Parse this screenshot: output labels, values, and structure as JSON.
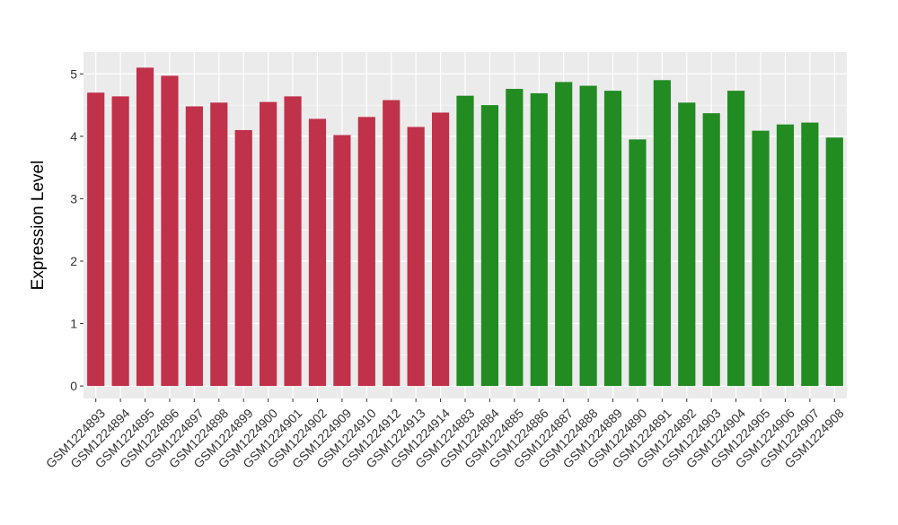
{
  "chart_data": {
    "type": "bar",
    "title": "",
    "xlabel": "",
    "ylabel": "Expression Level",
    "ylim": [
      -0.2,
      5.35
    ],
    "yticks": [
      0,
      1,
      2,
      3,
      4,
      5
    ],
    "grid": true,
    "categories": [
      "GSM1224893",
      "GSM1224894",
      "GSM1224895",
      "GSM1224896",
      "GSM1224897",
      "GSM1224898",
      "GSM1224899",
      "GSM1224900",
      "GSM1224901",
      "GSM1224902",
      "GSM1224909",
      "GSM1224910",
      "GSM1224912",
      "GSM1224913",
      "GSM1224914",
      "GSM1224883",
      "GSM1224884",
      "GSM1224885",
      "GSM1224886",
      "GSM1224887",
      "GSM1224888",
      "GSM1224889",
      "GSM1224890",
      "GSM1224891",
      "GSM1224892",
      "GSM1224903",
      "GSM1224904",
      "GSM1224905",
      "GSM1224906",
      "GSM1224907",
      "GSM1224908"
    ],
    "values": [
      4.7,
      4.64,
      5.1,
      4.97,
      4.48,
      4.54,
      4.1,
      4.55,
      4.64,
      4.28,
      4.02,
      4.31,
      4.58,
      4.15,
      4.38,
      4.65,
      4.5,
      4.76,
      4.69,
      4.87,
      4.81,
      4.73,
      3.95,
      4.9,
      4.54,
      4.37,
      4.73,
      4.09,
      4.19,
      4.22,
      3.98
    ],
    "group_colors": [
      "#c0314a",
      "#c0314a",
      "#c0314a",
      "#c0314a",
      "#c0314a",
      "#c0314a",
      "#c0314a",
      "#c0314a",
      "#c0314a",
      "#c0314a",
      "#c0314a",
      "#c0314a",
      "#c0314a",
      "#c0314a",
      "#c0314a",
      "#228b22",
      "#228b22",
      "#228b22",
      "#228b22",
      "#228b22",
      "#228b22",
      "#228b22",
      "#228b22",
      "#228b22",
      "#228b22",
      "#228b22",
      "#228b22",
      "#228b22",
      "#228b22",
      "#228b22",
      "#228b22"
    ],
    "panel_background": "#ebebeb",
    "grid_color": "#ffffff"
  }
}
